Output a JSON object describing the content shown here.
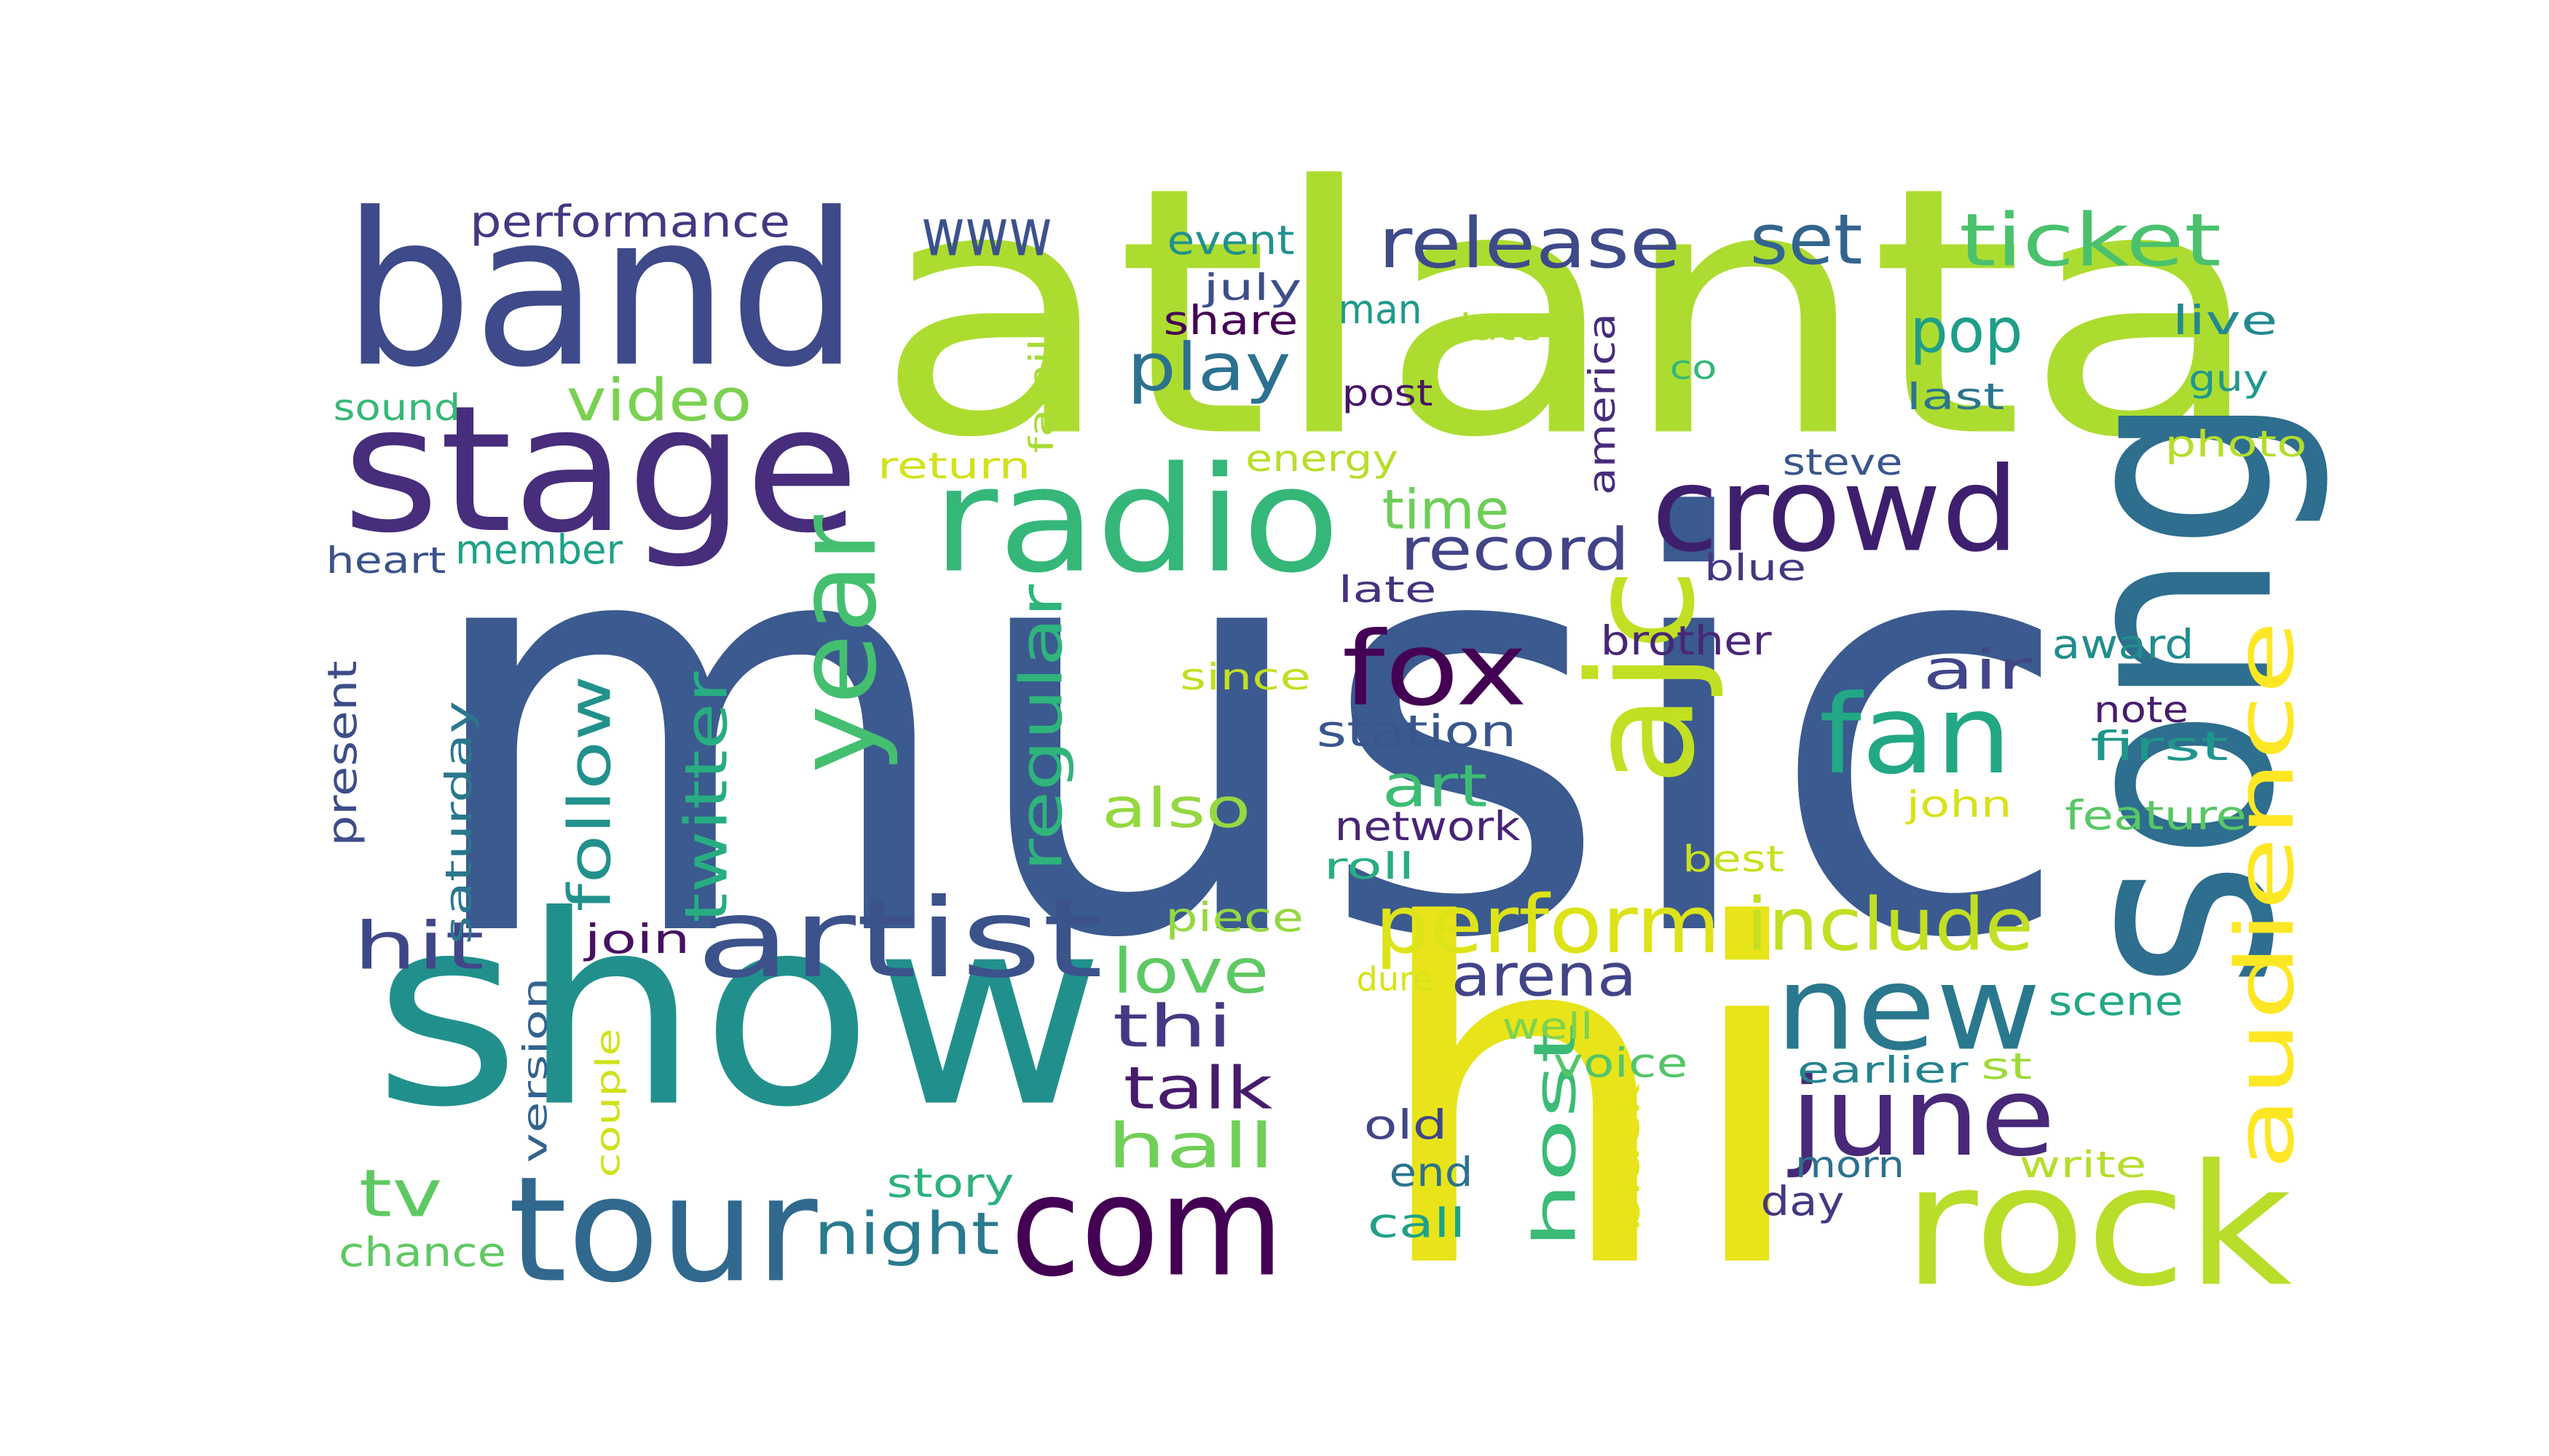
{
  "words": [
    {
      "text": "music",
      "color": "#3b5a8f"
    },
    {
      "text": "atlanta",
      "color": "#addc30"
    },
    {
      "text": "hi",
      "color": "#e8e419"
    },
    {
      "text": "show",
      "color": "#21908d"
    },
    {
      "text": "song",
      "color": "#2e6e8e"
    },
    {
      "text": "band",
      "color": "#3e4a89"
    },
    {
      "text": "stage",
      "color": "#472d7b"
    },
    {
      "text": "radio",
      "color": "#35b779"
    },
    {
      "text": "rock",
      "color": "#b8de29"
    },
    {
      "text": "com",
      "color": "#440154"
    },
    {
      "text": "tour",
      "color": "#31688e"
    },
    {
      "text": "ajc",
      "color": "#c2df23"
    },
    {
      "text": "crowd",
      "color": "#3e1f6e"
    },
    {
      "text": "artist",
      "color": "#3b528b"
    },
    {
      "text": "new",
      "color": "#2a788e"
    },
    {
      "text": "june",
      "color": "#482878"
    },
    {
      "text": "fan",
      "color": "#22a884"
    },
    {
      "text": "year",
      "color": "#44bf70"
    },
    {
      "text": "fox",
      "color": "#440154"
    },
    {
      "text": "audience",
      "color": "#fde725"
    },
    {
      "text": "perform",
      "color": "#dde318"
    },
    {
      "text": "include",
      "color": "#c2df23"
    },
    {
      "text": "ticket",
      "color": "#4ac16d"
    },
    {
      "text": "release",
      "color": "#3e4a89"
    },
    {
      "text": "set",
      "color": "#32658e"
    },
    {
      "text": "www",
      "color": "#3b528b"
    },
    {
      "text": "play",
      "color": "#2c728e"
    },
    {
      "text": "pop",
      "color": "#1f9e89"
    },
    {
      "text": "video",
      "color": "#7ad151"
    },
    {
      "text": "record",
      "color": "#414487"
    },
    {
      "text": "time",
      "color": "#6ece58"
    },
    {
      "text": "follow",
      "color": "#21918c"
    },
    {
      "text": "twitter",
      "color": "#27ad81"
    },
    {
      "text": "regular",
      "color": "#2fb47c"
    },
    {
      "text": "hit",
      "color": "#3f4788"
    },
    {
      "text": "love",
      "color": "#5ec962"
    },
    {
      "text": "arena",
      "color": "#414487"
    },
    {
      "text": "thi",
      "color": "#443983"
    },
    {
      "text": "talk",
      "color": "#481b6d"
    },
    {
      "text": "hall",
      "color": "#70cf57"
    },
    {
      "text": "night",
      "color": "#297b8e"
    },
    {
      "text": "tv",
      "color": "#5ec962"
    },
    {
      "text": "host",
      "color": "#3bbb75"
    },
    {
      "text": "art",
      "color": "#3dbc74"
    },
    {
      "text": "also",
      "color": "#95d840"
    },
    {
      "text": "air",
      "color": "#404688"
    },
    {
      "text": "performance",
      "color": "#453882"
    },
    {
      "text": "station",
      "color": "#39568c"
    },
    {
      "text": "network",
      "color": "#482475"
    },
    {
      "text": "saturday",
      "color": "#2a778e"
    },
    {
      "text": "present",
      "color": "#3d4d8a"
    },
    {
      "text": "member",
      "color": "#1fa188"
    },
    {
      "text": "heart",
      "color": "#3a538b"
    },
    {
      "text": "sound",
      "color": "#37b878"
    },
    {
      "text": "event",
      "color": "#21918c"
    },
    {
      "text": "july",
      "color": "#3d4e8a"
    },
    {
      "text": "share",
      "color": "#440154"
    },
    {
      "text": "man",
      "color": "#1f9a8a"
    },
    {
      "text": "date",
      "color": "#aadc32"
    },
    {
      "text": "post",
      "color": "#481467"
    },
    {
      "text": "america",
      "color": "#472c7a"
    },
    {
      "text": "co",
      "color": "#35b779"
    },
    {
      "text": "live",
      "color": "#23898e"
    },
    {
      "text": "guy",
      "color": "#1f988b"
    },
    {
      "text": "last",
      "color": "#2b758e"
    },
    {
      "text": "photo",
      "color": "#b5de2b"
    },
    {
      "text": "family",
      "color": "#a8db34"
    },
    {
      "text": "return",
      "color": "#d2e21b"
    },
    {
      "text": "energy",
      "color": "#b8de29"
    },
    {
      "text": "steve",
      "color": "#39568c"
    },
    {
      "text": "blue",
      "color": "#453781"
    },
    {
      "text": "late",
      "color": "#46327e"
    },
    {
      "text": "brother",
      "color": "#482677"
    },
    {
      "text": "award",
      "color": "#228c8d"
    },
    {
      "text": "note",
      "color": "#481c6e"
    },
    {
      "text": "first",
      "color": "#1f968b"
    },
    {
      "text": "since",
      "color": "#c2df23"
    },
    {
      "text": "john",
      "color": "#d8e219"
    },
    {
      "text": "feature",
      "color": "#58c765"
    },
    {
      "text": "best",
      "color": "#c8e020"
    },
    {
      "text": "roll",
      "color": "#28ae80"
    },
    {
      "text": "piece",
      "color": "#95d840"
    },
    {
      "text": "join",
      "color": "#471063"
    },
    {
      "text": "dure",
      "color": "#d8e219"
    },
    {
      "text": "well",
      "color": "#7fd34e"
    },
    {
      "text": "voice",
      "color": "#54c568"
    },
    {
      "text": "earlier",
      "color": "#26828e"
    },
    {
      "text": "st",
      "color": "#9fda3a"
    },
    {
      "text": "scene",
      "color": "#22a884"
    },
    {
      "text": "version",
      "color": "#33638d"
    },
    {
      "text": "couple",
      "color": "#d0e11c"
    },
    {
      "text": "black",
      "color": "#e5e419"
    },
    {
      "text": "old",
      "color": "#404688"
    },
    {
      "text": "end",
      "color": "#2c728e"
    },
    {
      "text": "call",
      "color": "#1fa187"
    },
    {
      "text": "morn",
      "color": "#2d708e"
    },
    {
      "text": "write",
      "color": "#b5de2b"
    },
    {
      "text": "story",
      "color": "#2db27d"
    },
    {
      "text": "day",
      "color": "#453882"
    },
    {
      "text": "chance",
      "color": "#5ec962"
    }
  ]
}
